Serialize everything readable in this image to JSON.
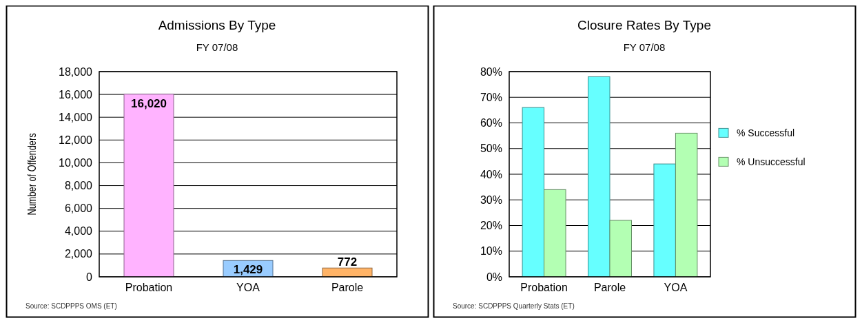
{
  "chart_data": [
    {
      "type": "bar",
      "title": "Admissions By Type",
      "subtitle": "FY 07/08",
      "ylabel": "Number of Offenders",
      "categories": [
        "Probation",
        "YOA",
        "Parole"
      ],
      "values": [
        16020,
        1429,
        772
      ],
      "colors": [
        "#ffb3ff",
        "#99ccff",
        "#ffb366"
      ],
      "value_labels": [
        "16,020",
        "1,429",
        "772"
      ],
      "ylim": [
        0,
        18000
      ],
      "yticks": [
        {
          "value": 0,
          "label": "0"
        },
        {
          "value": 2000,
          "label": "2,000"
        },
        {
          "value": 4000,
          "label": "4,000"
        },
        {
          "value": 6000,
          "label": "6,000"
        },
        {
          "value": 8000,
          "label": "8,000"
        },
        {
          "value": 10000,
          "label": "10,000"
        },
        {
          "value": 12000,
          "label": "12,000"
        },
        {
          "value": 14000,
          "label": "14,000"
        },
        {
          "value": 16000,
          "label": "16,000"
        },
        {
          "value": 18000,
          "label": "18,000"
        }
      ],
      "grid": "y",
      "legend": false,
      "annotations": [
        "Source: SCDPPPS OMS (ET)"
      ]
    },
    {
      "type": "bar",
      "title": "Closure Rates By Type",
      "subtitle": "FY 07/08",
      "categories": [
        "Probation",
        "Parole",
        "YOA"
      ],
      "series": [
        {
          "name": "% Successful",
          "color": "#66ffff",
          "values": [
            66,
            78,
            44
          ]
        },
        {
          "name": "% Unsuccessful",
          "color": "#b3ffb3",
          "values": [
            34,
            22,
            56
          ]
        }
      ],
      "ylim": [
        0,
        80
      ],
      "yticks": [
        {
          "value": 0,
          "label": "0%"
        },
        {
          "value": 10,
          "label": "10%"
        },
        {
          "value": 20,
          "label": "20%"
        },
        {
          "value": 30,
          "label": "30%"
        },
        {
          "value": 40,
          "label": "40%"
        },
        {
          "value": 50,
          "label": "50%"
        },
        {
          "value": 60,
          "label": "60%"
        },
        {
          "value": 70,
          "label": "70%"
        },
        {
          "value": 80,
          "label": "80%"
        }
      ],
      "grid": "y",
      "legend": "right",
      "annotations": [
        "Source: SCDPPPS Quarterly Stats  (ET)"
      ]
    }
  ]
}
